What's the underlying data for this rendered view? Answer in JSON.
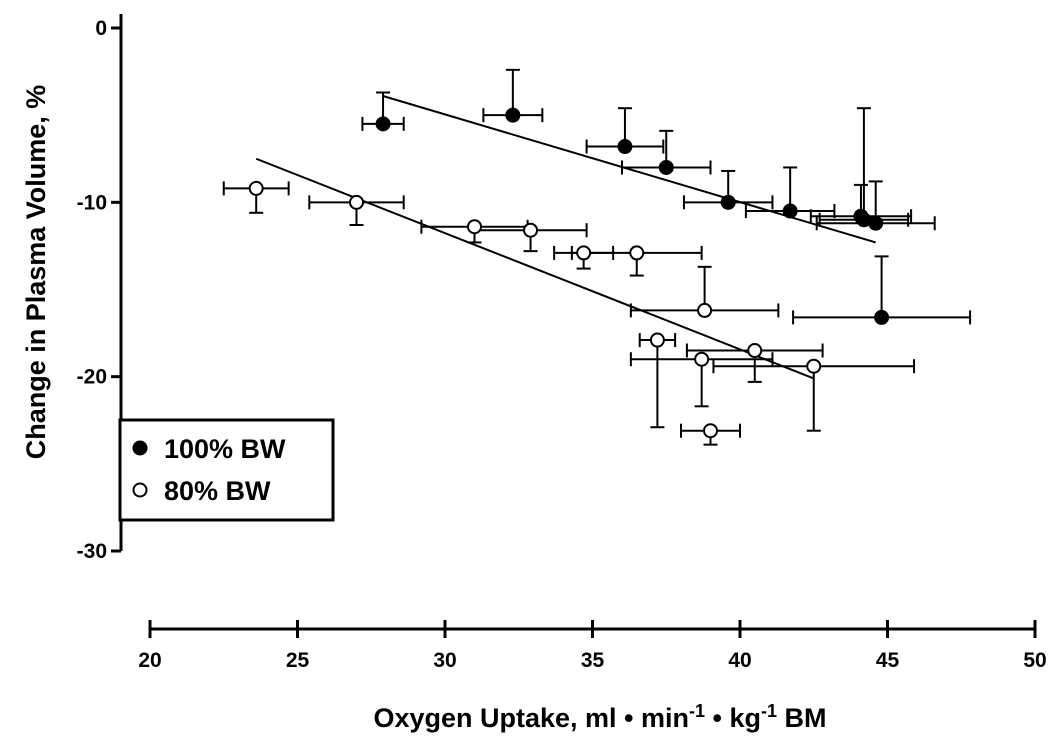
{
  "chart_data": {
    "type": "scatter",
    "title": "",
    "xlabel": "Oxygen Uptake, ml • min⁻¹ • kg⁻¹ BM",
    "xlabel_parts": {
      "a": "Oxygen Uptake, ml • min",
      "sup1": "-1",
      "b": " • kg",
      "sup2": "-1",
      "c": " BM"
    },
    "ylabel": "Change in Plasma Volume, %",
    "xlim": [
      20,
      50
    ],
    "ylim": [
      -30,
      0
    ],
    "x_ticks": [
      20,
      25,
      30,
      35,
      40,
      45,
      50
    ],
    "y_ticks": [
      0,
      -10,
      -20,
      -30
    ],
    "grid": false,
    "legend_position": "bottom-left",
    "series": [
      {
        "name": "100% BW",
        "marker": "filled-circle",
        "color": "#000000",
        "points": [
          {
            "x": 27.9,
            "y": -5.5,
            "xerr": 0.7,
            "yerr": 1.8,
            "yerr_dir": "up"
          },
          {
            "x": 32.3,
            "y": -5.0,
            "xerr": 1.0,
            "yerr": 2.6,
            "yerr_dir": "up"
          },
          {
            "x": 36.1,
            "y": -6.8,
            "xerr": 1.3,
            "yerr": 2.2,
            "yerr_dir": "up"
          },
          {
            "x": 37.5,
            "y": -8.0,
            "xerr": 1.5,
            "yerr": 2.1,
            "yerr_dir": "up"
          },
          {
            "x": 39.6,
            "y": -10.0,
            "xerr": 1.5,
            "yerr": 1.8,
            "yerr_dir": "up"
          },
          {
            "x": 41.7,
            "y": -10.5,
            "xerr": 1.5,
            "yerr": 2.5,
            "yerr_dir": "up"
          },
          {
            "x": 44.1,
            "y": -10.8,
            "xerr": 1.7,
            "yerr": 1.8,
            "yerr_dir": "up"
          },
          {
            "x": 44.2,
            "y": -11.0,
            "xerr": 1.5,
            "yerr": 6.4,
            "yerr_dir": "up"
          },
          {
            "x": 44.6,
            "y": -11.2,
            "xerr": 2.0,
            "yerr": 2.4,
            "yerr_dir": "up"
          },
          {
            "x": 44.8,
            "y": -16.6,
            "xerr": 3.0,
            "yerr": 3.5,
            "yerr_dir": "up"
          }
        ],
        "regression": {
          "x": [
            27.9,
            44.6
          ],
          "y": [
            -3.9,
            -12.3
          ]
        }
      },
      {
        "name": "80% BW",
        "marker": "open-circle",
        "color": "#000000",
        "points": [
          {
            "x": 23.6,
            "y": -9.2,
            "xerr": 1.1,
            "yerr": 1.4,
            "yerr_dir": "down"
          },
          {
            "x": 27.0,
            "y": -10.0,
            "xerr": 1.6,
            "yerr": 1.3,
            "yerr_dir": "down"
          },
          {
            "x": 31.0,
            "y": -11.4,
            "xerr": 1.8,
            "yerr": 0.9,
            "yerr_dir": "down"
          },
          {
            "x": 32.9,
            "y": -11.6,
            "xerr": 1.9,
            "yerr": 1.2,
            "yerr_dir": "down"
          },
          {
            "x": 34.7,
            "y": -12.9,
            "xerr": 1.0,
            "yerr": 0.9,
            "yerr_dir": "down"
          },
          {
            "x": 36.5,
            "y": -12.9,
            "xerr": 2.2,
            "yerr": 1.3,
            "yerr_dir": "down"
          },
          {
            "x": 38.8,
            "y": -16.2,
            "xerr": 2.5,
            "yerr": 2.5,
            "yerr_dir": "up"
          },
          {
            "x": 37.2,
            "y": -17.9,
            "xerr": 0.6,
            "yerr": 5.0,
            "yerr_dir": "down"
          },
          {
            "x": 38.7,
            "y": -19.0,
            "xerr": 2.4,
            "yerr": 2.7,
            "yerr_dir": "down"
          },
          {
            "x": 40.5,
            "y": -18.5,
            "xerr": 2.3,
            "yerr": 1.8,
            "yerr_dir": "down"
          },
          {
            "x": 42.5,
            "y": -19.4,
            "xerr": 3.4,
            "yerr": 3.7,
            "yerr_dir": "down"
          },
          {
            "x": 39.0,
            "y": -23.1,
            "xerr": 1.0,
            "yerr": 0.8,
            "yerr_dir": "down"
          }
        ],
        "regression": {
          "x": [
            23.6,
            42.5
          ],
          "y": [
            -7.5,
            -20.1
          ]
        }
      }
    ]
  }
}
